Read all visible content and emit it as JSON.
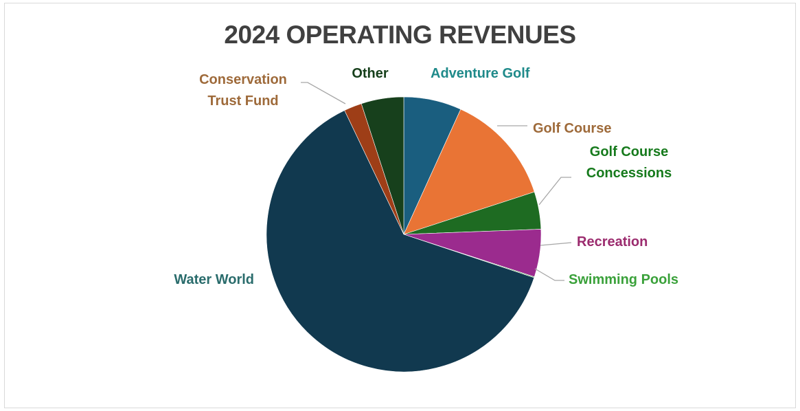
{
  "chart_data": {
    "type": "pie",
    "title": "2024 OPERATING REVENUES",
    "slices": [
      {
        "name": "Adventure Golf",
        "value": 6.8,
        "color": "#1a5e7f",
        "label_color": "#1f8a8a",
        "label_lines": [
          "Adventure Golf"
        ]
      },
      {
        "name": "Golf Course",
        "value": 13.2,
        "color": "#e97435",
        "label_color": "#9e6a3a",
        "label_lines": [
          "Golf Course"
        ]
      },
      {
        "name": "Golf Course Concessions",
        "value": 4.4,
        "color": "#1e6b22",
        "label_color": "#167a1c",
        "label_lines": [
          "Golf Course",
          "Concessions"
        ]
      },
      {
        "name": "Recreation",
        "value": 5.6,
        "color": "#9b2b8e",
        "label_color": "#9b2b6e",
        "label_lines": [
          "Recreation"
        ]
      },
      {
        "name": "Swimming Pools",
        "value": 0.1,
        "color": "#3aa13a",
        "label_color": "#3aa13a",
        "label_lines": [
          "Swimming Pools"
        ]
      },
      {
        "name": "Water World",
        "value": 62.8,
        "color": "#11394f",
        "label_color": "#2a6c6c",
        "label_lines": [
          "Water World"
        ]
      },
      {
        "name": "Conservation Trust Fund",
        "value": 2.1,
        "color": "#9e3e17",
        "label_color": "#9e6a3a",
        "label_lines": [
          "Conservation",
          "Trust Fund"
        ]
      },
      {
        "name": "Other",
        "value": 5.0,
        "color": "#17401c",
        "label_color": "#17401c",
        "label_lines": [
          "Other"
        ]
      }
    ],
    "legend": "none",
    "data_labels": "category names outside with leader lines"
  }
}
